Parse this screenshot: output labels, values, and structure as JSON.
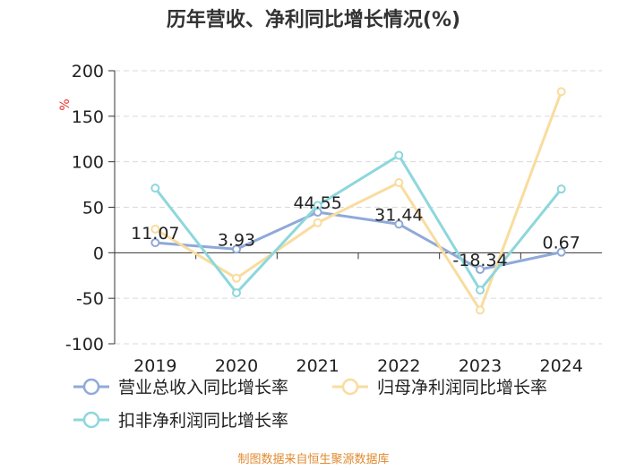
{
  "chart_data": {
    "type": "line",
    "title": "历年营收、净利同比增长情况(%)",
    "ylabel": "%",
    "xlabel": "",
    "categories": [
      "2019",
      "2020",
      "2021",
      "2022",
      "2023",
      "2024"
    ],
    "ylim": [
      -100,
      200
    ],
    "yticks": [
      200,
      150,
      100,
      50,
      0,
      -50,
      -100
    ],
    "grid": true,
    "legend_position": "bottom",
    "series": [
      {
        "name": "营业总收入同比增长率",
        "values": [
          11.07,
          3.93,
          44.55,
          31.44,
          -18.34,
          0.67
        ],
        "labels": [
          "11.07",
          "3.93",
          "44.55",
          "31.44",
          "-18.34",
          "0.67"
        ],
        "color": "#8fa9d9"
      },
      {
        "name": "归母净利润同比增长率",
        "values": [
          26,
          -28,
          33,
          77,
          -63,
          177
        ],
        "color": "#f9dc9e"
      },
      {
        "name": "扣非净利润同比增长率",
        "values": [
          71,
          -44,
          52,
          107,
          -41,
          70
        ],
        "color": "#8dd7dc"
      }
    ],
    "source": "制图数据来自恒生聚源数据库"
  }
}
